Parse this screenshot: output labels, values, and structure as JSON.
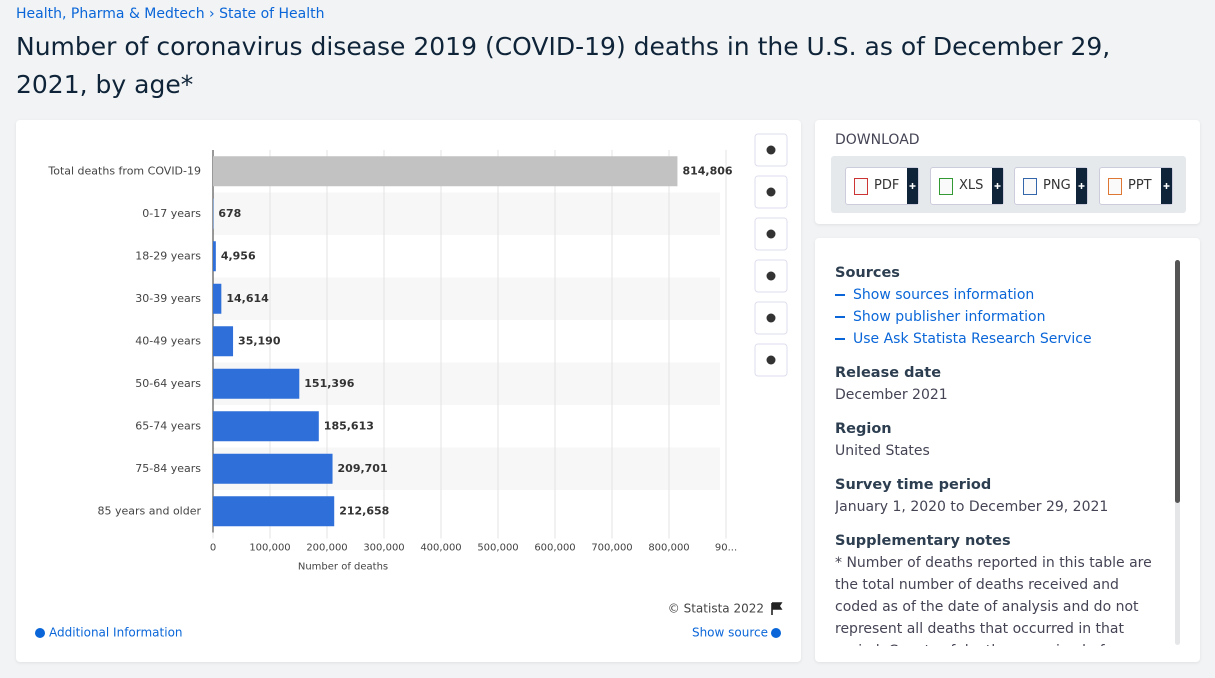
{
  "breadcrumb": [
    "Health, Pharma & Medtech",
    "State of Health"
  ],
  "title": "Number of coronavirus disease 2019 (COVID-19) deaths in the U.S. as of December 29, 2021, by age*",
  "chart_data": {
    "type": "bar",
    "orientation": "horizontal",
    "categories": [
      "Total deaths from COVID-19",
      "0-17 years",
      "18-29 years",
      "30-39 years",
      "40-49 years",
      "50-64 years",
      "65-74 years",
      "75-84 years",
      "85 years and older"
    ],
    "values": [
      814806,
      678,
      4956,
      14614,
      35190,
      151396,
      185613,
      209701,
      212658
    ],
    "value_labels": [
      "814,806",
      "678",
      "4,956",
      "14,614",
      "35,190",
      "151,396",
      "185,613",
      "209,701",
      "212,658"
    ],
    "colors": [
      "#c2c2c2",
      "#2e6fd9",
      "#2e6fd9",
      "#2e6fd9",
      "#2e6fd9",
      "#2e6fd9",
      "#2e6fd9",
      "#2e6fd9",
      "#2e6fd9"
    ],
    "xlim": [
      0,
      900000
    ],
    "xticks": [
      0,
      {
        "value": 100000,
        "label": "100,000"
      },
      {
        "value": 200000,
        "label": "200,000"
      },
      {
        "value": 300000,
        "label": "300,000"
      },
      {
        "value": 400000,
        "label": "400,000"
      },
      {
        "value": 500000,
        "label": "500,000"
      },
      {
        "value": 600000,
        "label": "600,000"
      },
      {
        "value": 700000,
        "label": "700,000"
      },
      {
        "value": 800000,
        "label": "800,000"
      },
      {
        "value": 900000,
        "label": "90..."
      }
    ],
    "x_label": "Number of deaths",
    "grid": true
  },
  "chart_footer": {
    "copyright": "© Statista 2022",
    "additional": "Additional Information",
    "show_source": "Show source"
  },
  "download": {
    "heading": "DOWNLOAD",
    "buttons": [
      "PDF",
      "XLS",
      "PNG",
      "PPT"
    ]
  },
  "info": {
    "sources_heading": "Sources",
    "source_links": [
      "Show sources information",
      "Show publisher information",
      "Use Ask Statista Research Service"
    ],
    "release_heading": "Release date",
    "release": "December 2021",
    "region_heading": "Region",
    "region": "United States",
    "period_heading": "Survey time period",
    "period": "January 1, 2020 to December 29, 2021",
    "notes_heading": "Supplementary notes",
    "notes": "* Number of deaths reported in this table are the total number of deaths received and coded as of the date of analysis and do not represent all deaths that occurred in that period. Counts of deaths occurring before or after the reporting period are"
  }
}
